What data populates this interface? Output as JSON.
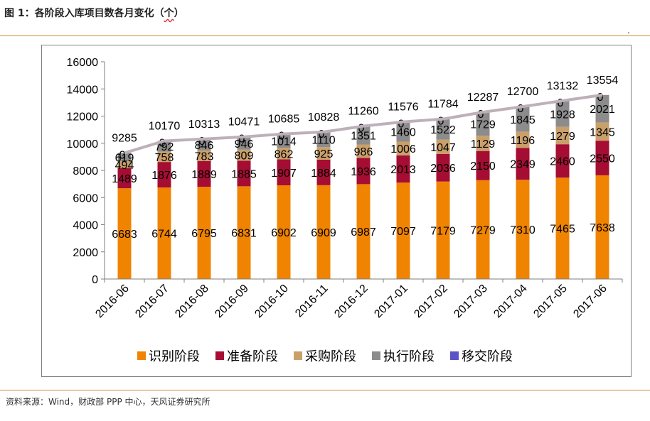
{
  "header": {
    "title_prefix": "图 1：各阶段入库项目数各月变化（",
    "title_unit": "个",
    "title_suffix": "）",
    "corner_mark": "."
  },
  "footer": {
    "source": "资料来源：Wind，财政部 PPP 中心，天风证券研究所"
  },
  "colors": {
    "recognize": "#f08400",
    "prepare": "#a50d33",
    "purchase": "#caa06a",
    "execute": "#8c8c8c",
    "transfer": "#5b52c9",
    "total_line": "#bdb0b8",
    "rule": "#d18b3c"
  },
  "chart_data": {
    "type": "bar",
    "stacked": true,
    "title": "各阶段入库项目数各月变化（个）",
    "xlabel": "",
    "ylabel": "",
    "ylim": [
      0,
      16000
    ],
    "yticks": [
      "0",
      "2000",
      "4000",
      "6000",
      "8000",
      "10000",
      "12000",
      "14000",
      "16000"
    ],
    "categories": [
      "2016-06",
      "2016-07",
      "2016-08",
      "2016-09",
      "2016-10",
      "2016-11",
      "2016-12",
      "2017-01",
      "2017-02",
      "2017-03",
      "2017-04",
      "2017-05",
      "2017-06"
    ],
    "series": [
      {
        "name": "识别阶段",
        "key": "recognize",
        "values": [
          6683,
          6744,
          6795,
          6831,
          6902,
          6909,
          6987,
          7097,
          7179,
          7279,
          7310,
          7465,
          7638
        ]
      },
      {
        "name": "准备阶段",
        "key": "prepare",
        "values": [
          1489,
          1876,
          1889,
          1885,
          1907,
          1884,
          1936,
          2013,
          2036,
          2150,
          2349,
          2460,
          2550
        ]
      },
      {
        "name": "采购阶段",
        "key": "purchase",
        "values": [
          494,
          758,
          783,
          809,
          862,
          925,
          986,
          1006,
          1047,
          1129,
          1196,
          1279,
          1345
        ]
      },
      {
        "name": "执行阶段",
        "key": "execute",
        "values": [
          619,
          792,
          846,
          946,
          1014,
          1110,
          1351,
          1460,
          1522,
          1729,
          1845,
          1928,
          2021
        ]
      },
      {
        "name": "移交阶段",
        "key": "transfer",
        "values": [
          0,
          0,
          0,
          0,
          0,
          0,
          0,
          0,
          0,
          0,
          0,
          0,
          0
        ]
      }
    ],
    "totals": [
      9285,
      10170,
      10313,
      10471,
      10685,
      10828,
      11260,
      11576,
      11784,
      12287,
      12700,
      13132,
      13554
    ],
    "legend": [
      "识别阶段",
      "准备阶段",
      "采购阶段",
      "执行阶段",
      "移交阶段"
    ],
    "legend_position": "bottom",
    "grid": false
  }
}
